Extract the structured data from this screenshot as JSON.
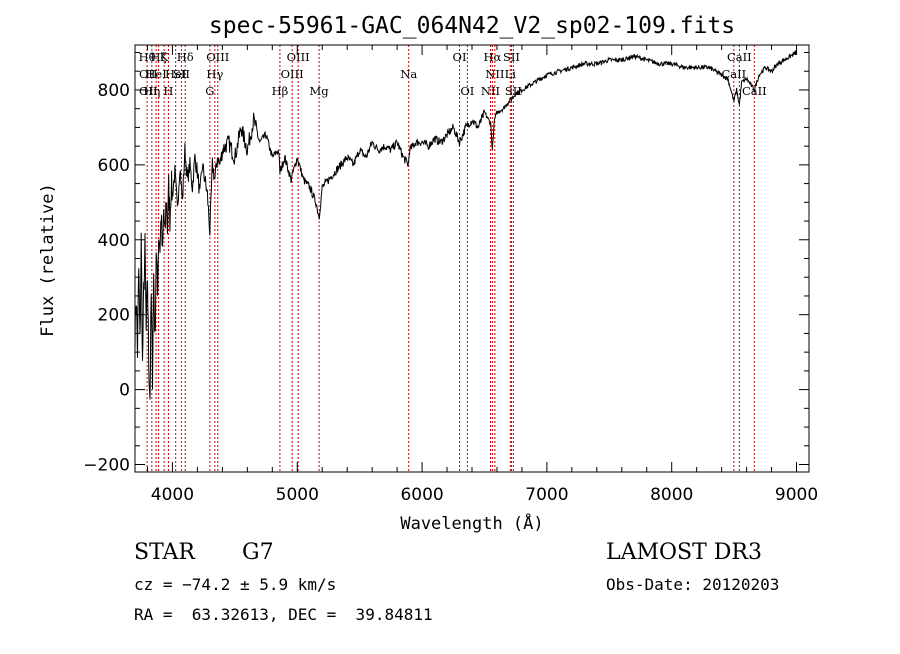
{
  "chart_data": {
    "type": "line",
    "title": "spec-55961-GAC_064N42_V2_sp02-109.fits",
    "xlabel": "Wavelength (Å)",
    "ylabel": "Flux (relative)",
    "xlim": [
      3700,
      9100
    ],
    "ylim": [
      -220,
      920
    ],
    "x_ticks": [
      4000,
      5000,
      6000,
      7000,
      8000,
      9000
    ],
    "y_ticks": [
      -200,
      0,
      200,
      400,
      600,
      800
    ],
    "grid": false,
    "line_color": "#000000",
    "marker_color": "#cc0000",
    "series": [
      {
        "x": [
          3700,
          3710,
          3720,
          3730,
          3740,
          3750,
          3760,
          3770,
          3780,
          3790,
          3800,
          3810,
          3820,
          3830,
          3840,
          3850,
          3860,
          3870,
          3880,
          3890,
          3900,
          3910,
          3920,
          3930,
          3940,
          3950,
          3960,
          3970,
          3980,
          3990,
          4000,
          4020,
          4040,
          4060,
          4080,
          4100,
          4120,
          4140,
          4160,
          4180,
          4200,
          4220,
          4240,
          4260,
          4280,
          4300,
          4320,
          4340,
          4360,
          4380,
          4400,
          4450,
          4500,
          4550,
          4600,
          4650,
          4700,
          4750,
          4800,
          4850,
          4861,
          4900,
          4950,
          5000,
          5050,
          5100,
          5150,
          5175,
          5200,
          5250,
          5300,
          5350,
          5400,
          5450,
          5500,
          5550,
          5600,
          5650,
          5700,
          5750,
          5800,
          5850,
          5890,
          5900,
          5950,
          6000,
          6050,
          6100,
          6150,
          6200,
          6250,
          6300,
          6350,
          6400,
          6450,
          6500,
          6550,
          6563,
          6580,
          6600,
          6650,
          6700,
          6750,
          6800,
          6850,
          6900,
          6950,
          7000,
          7100,
          7200,
          7300,
          7400,
          7500,
          7600,
          7700,
          7800,
          7900,
          8000,
          8100,
          8200,
          8300,
          8400,
          8450,
          8498,
          8520,
          8542,
          8560,
          8600,
          8662,
          8700,
          8750,
          8800,
          8850,
          8900,
          8950,
          9000
        ],
        "y": [
          150,
          250,
          100,
          320,
          120,
          400,
          60,
          260,
          380,
          150,
          300,
          80,
          -20,
          250,
          40,
          310,
          120,
          380,
          250,
          420,
          380,
          470,
          350,
          480,
          400,
          520,
          430,
          540,
          460,
          550,
          520,
          580,
          480,
          600,
          500,
          640,
          560,
          600,
          540,
          620,
          580,
          520,
          600,
          560,
          520,
          420,
          600,
          560,
          620,
          600,
          640,
          660,
          620,
          700,
          640,
          720,
          660,
          680,
          620,
          640,
          580,
          620,
          560,
          620,
          560,
          540,
          500,
          460,
          540,
          560,
          580,
          600,
          620,
          600,
          640,
          620,
          660,
          640,
          650,
          640,
          660,
          620,
          600,
          640,
          660,
          660,
          650,
          670,
          660,
          680,
          700,
          660,
          700,
          720,
          700,
          740,
          710,
          640,
          720,
          740,
          750,
          770,
          790,
          800,
          810,
          820,
          830,
          840,
          850,
          860,
          870,
          870,
          880,
          880,
          890,
          880,
          870,
          870,
          860,
          860,
          860,
          840,
          830,
          770,
          800,
          760,
          820,
          830,
          800,
          840,
          860,
          850,
          870,
          880,
          890,
          900
        ]
      }
    ],
    "line_markers": [
      {
        "x": 3797,
        "label": "Hθ",
        "row": 0
      },
      {
        "x": 3835,
        "label": "Hη",
        "row": 2
      },
      {
        "x": 3869,
        "label": "HeI",
        "row": 1
      },
      {
        "x": 3889,
        "label": "Hζ",
        "row": 0
      },
      {
        "x": 3933,
        "label": "K",
        "row": 0
      },
      {
        "x": 3968,
        "label": "H",
        "row": 2
      },
      {
        "x": 4026,
        "label": "HeI",
        "row": 1
      },
      {
        "x": 4072,
        "label": "SII",
        "row": 1
      },
      {
        "x": 4102,
        "label": "Hδ",
        "row": 0
      },
      {
        "x": 4300,
        "label": "G",
        "row": 2
      },
      {
        "x": 4340,
        "label": "Hγ",
        "row": 1
      },
      {
        "x": 4363,
        "label": "OIII",
        "row": 0
      },
      {
        "x": 4861,
        "label": "Hβ",
        "row": 2
      },
      {
        "x": 4959,
        "label": "OIII",
        "row": 1
      },
      {
        "x": 5007,
        "label": "OIII",
        "row": 0
      },
      {
        "x": 5175,
        "label": "Mg",
        "row": 2
      },
      {
        "x": 5893,
        "label": "Na",
        "row": 1
      },
      {
        "x": 6300,
        "label": "OI",
        "row": 0
      },
      {
        "x": 6363,
        "label": "OI",
        "row": 2
      },
      {
        "x": 6548,
        "label": "NII",
        "row": 2
      },
      {
        "x": 6563,
        "label": "Hα",
        "row": 0
      },
      {
        "x": 6583,
        "label": "NII",
        "row": 1
      },
      {
        "x": 6707,
        "label": "Li",
        "row": 1
      },
      {
        "x": 6716,
        "label": "SII",
        "row": 0
      },
      {
        "x": 6731,
        "label": "SII",
        "row": 2
      },
      {
        "x": 8498,
        "label": "CaII",
        "row": 1
      },
      {
        "x": 8542,
        "label": "CaII",
        "row": 0
      },
      {
        "x": 8662,
        "label": "CaII",
        "row": 2
      }
    ],
    "extra_labels": [
      "OII",
      "OII"
    ]
  },
  "footer": {
    "class_label": "STAR",
    "subclass": "G7",
    "survey": "LAMOST DR3",
    "cz": "cz = −74.2 ± 5.9 km/s",
    "obs_date": "Obs-Date: 20120203",
    "coords": "RA =  63.32613, DEC =  39.84811"
  }
}
